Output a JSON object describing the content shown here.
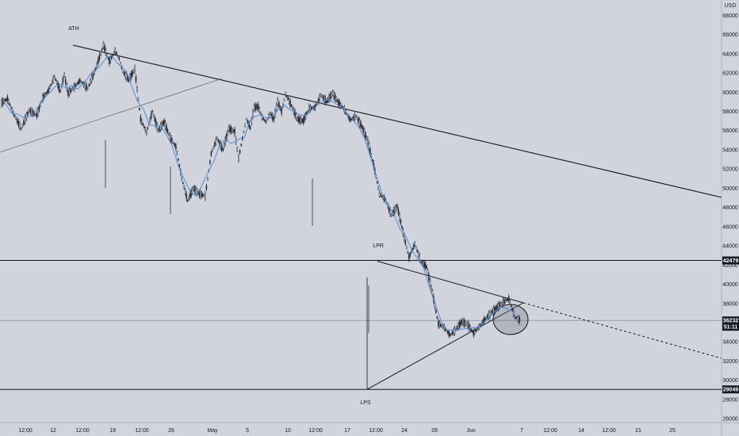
{
  "chart_data": {
    "type": "line",
    "currency_label": "USD",
    "price_ticks": [
      26000,
      28000,
      30000,
      32000,
      34000,
      36000,
      38000,
      40000,
      42000,
      44000,
      46000,
      48000,
      50000,
      52000,
      54000,
      56000,
      58000,
      60000,
      62000,
      64000,
      66000,
      68000
    ],
    "ylim": [
      25600,
      69600
    ],
    "time_labels": [
      "12:00",
      "12",
      "12:00",
      "19",
      "12:00",
      "26",
      "May",
      "5",
      "10",
      "12:00",
      "17",
      "12:00",
      "24",
      "28",
      "Jun",
      "7",
      "12:00",
      "14",
      "12:00",
      "21",
      "25"
    ],
    "annotations": {
      "ath": "ATH",
      "lpr": "LPR",
      "lps": "LPS"
    },
    "levels": [
      {
        "label": "42479",
        "value": 42479
      },
      {
        "label": "29049",
        "value": 29049
      }
    ],
    "current": {
      "label": "36232",
      "timer": "51:11",
      "value": 36232
    },
    "price_series_t": [
      0,
      3,
      6,
      10,
      14,
      18,
      21,
      24,
      27,
      30,
      32,
      34,
      37,
      40,
      44,
      48,
      52,
      55,
      58,
      60,
      62,
      65,
      68,
      71,
      74,
      77,
      80,
      83,
      86,
      89,
      92,
      95,
      98,
      101,
      104,
      107,
      110,
      113,
      116,
      119,
      121,
      123,
      125,
      127,
      129,
      131,
      133,
      135,
      137,
      139,
      141,
      143,
      145,
      148,
      151,
      154,
      157,
      160,
      163,
      166,
      169,
      172,
      175,
      178,
      181,
      184,
      187,
      190,
      193,
      196,
      199,
      202,
      205,
      208,
      211,
      214,
      217,
      220,
      223,
      226,
      229,
      232,
      235,
      238,
      241,
      244,
      247,
      250,
      253,
      256,
      259,
      262,
      265
    ],
    "price_series_v": [
      58900,
      59300,
      57800,
      56200,
      58100,
      57600,
      59400,
      60200,
      61600,
      60100,
      61800,
      59900,
      60500,
      61200,
      60400,
      62400,
      64900,
      63200,
      64300,
      63500,
      62100,
      61300,
      62400,
      57200,
      55800,
      58000,
      56000,
      56900,
      55300,
      54300,
      51000,
      48700,
      50000,
      49400,
      49200,
      53600,
      55200,
      54000,
      56200,
      55900,
      53100,
      55200,
      57200,
      56300,
      58400,
      58500,
      57400,
      56900,
      57800,
      57200,
      59000,
      58000,
      59800,
      58600,
      57200,
      57000,
      58300,
      58400,
      59700,
      59000,
      59900,
      58900,
      58200,
      57100,
      57500,
      56400,
      54900,
      52400,
      49400,
      48800,
      47200,
      48100,
      45400,
      42800,
      44200,
      42400,
      41800,
      39100,
      35900,
      35500,
      34700,
      35300,
      36100,
      35800,
      34900,
      35600,
      36400,
      37000,
      37600,
      38100,
      38500,
      36600,
      36200
    ]
  }
}
